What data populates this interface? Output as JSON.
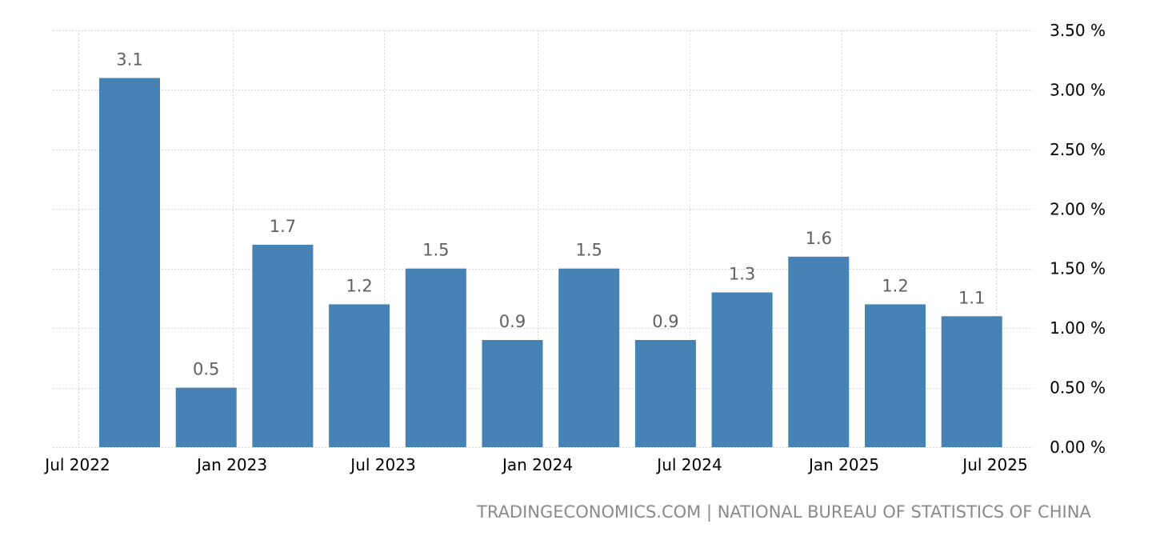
{
  "chart_data": {
    "type": "bar",
    "categories": [
      "Q3 2022",
      "Q4 2022",
      "Q1 2023",
      "Q2 2023",
      "Q3 2023",
      "Q4 2023",
      "Q1 2024",
      "Q2 2024",
      "Q3 2024",
      "Q4 2024",
      "Q1 2025",
      "Q2 2025"
    ],
    "values": [
      3.1,
      0.5,
      1.7,
      1.2,
      1.5,
      0.9,
      1.5,
      0.9,
      1.3,
      1.6,
      1.2,
      1.1
    ],
    "data_labels": [
      "3.1",
      "0.5",
      "1.7",
      "1.2",
      "1.5",
      "0.9",
      "1.5",
      "0.9",
      "1.3",
      "1.6",
      "1.2",
      "1.1"
    ],
    "x_ticks": [
      "Jul 2022",
      "Jan 2023",
      "Jul 2023",
      "Jan 2024",
      "Jul 2024",
      "Jan 2025",
      "Jul 2025"
    ],
    "y_ticks": [
      "0.00 %",
      "0.50 %",
      "1.00 %",
      "1.50 %",
      "2.00 %",
      "2.50 %",
      "3.00 %",
      "3.50 %"
    ],
    "ylim": [
      0,
      3.5
    ],
    "grid": true,
    "bar_color": "#4682b4",
    "title": "",
    "xlabel": "",
    "ylabel": ""
  },
  "footer": {
    "credit": "TRADINGECONOMICS.COM | NATIONAL BUREAU OF STATISTICS OF CHINA"
  }
}
